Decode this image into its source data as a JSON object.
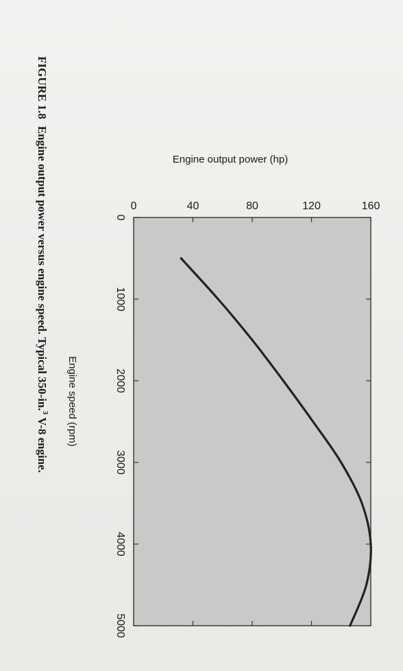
{
  "chart_data": {
    "type": "line",
    "x": [
      500,
      1000,
      1500,
      2000,
      2500,
      3000,
      3500,
      4000,
      4500,
      5000
    ],
    "series": [
      {
        "values": [
          32,
          57,
          80,
          101,
          121,
          140,
          154,
          160,
          157,
          146
        ]
      }
    ],
    "xlabel": "Engine speed (rpm)",
    "ylabel": "Engine output power (hp)",
    "xlim": [
      0,
      5000
    ],
    "ylim": [
      0,
      160
    ],
    "xticks": [
      0,
      1000,
      2000,
      3000,
      4000,
      5000
    ],
    "yticks": [
      0,
      40,
      80,
      120,
      160
    ],
    "grid": false,
    "plot_background": "#c9c9c7",
    "line_color": "#222222"
  },
  "caption": {
    "label": "FIGURE 1.8",
    "text": "Engine output power versus engine speed. Typical 350-in.",
    "superscript": "3",
    "text_after": "V-8 engine."
  }
}
